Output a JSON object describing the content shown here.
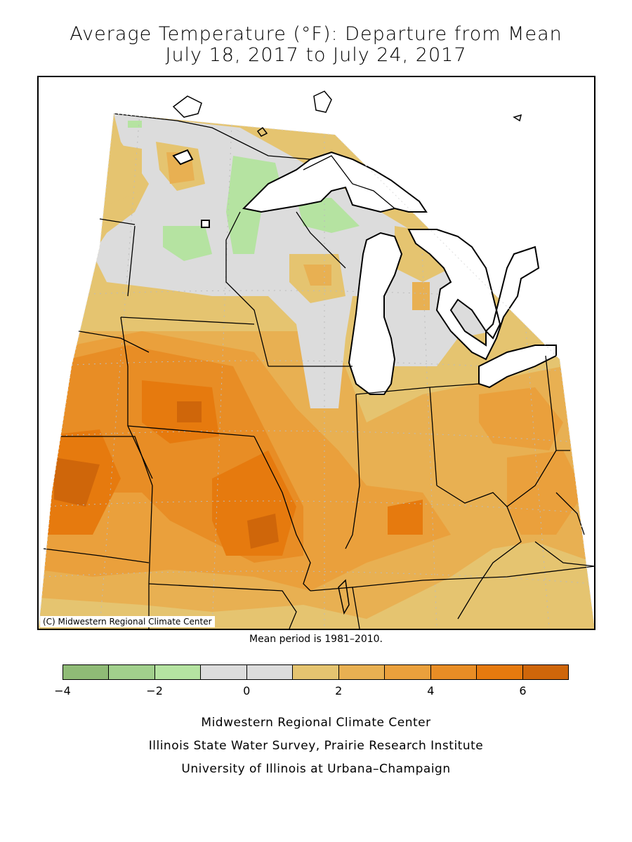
{
  "title": {
    "line1": "Average Temperature (°F): Departure from Mean",
    "line2": "July 18, 2017 to July 24, 2017"
  },
  "map": {
    "copyright": "(C) Midwestern Regional Climate Center",
    "background_color": "#e5c470"
  },
  "mean_period": "Mean period is 1981–2010.",
  "legend": {
    "bins": [
      {
        "from": -4,
        "to": -3,
        "color": "#8fbb76"
      },
      {
        "from": -3,
        "to": -2,
        "color": "#a1d08c"
      },
      {
        "from": -2,
        "to": -1,
        "color": "#b5e3a1"
      },
      {
        "from": -1,
        "to": 0,
        "color": "#dcdcdc"
      },
      {
        "from": 0,
        "to": 1,
        "color": "#dcdcdc"
      },
      {
        "from": 1,
        "to": 2,
        "color": "#e5c470"
      },
      {
        "from": 2,
        "to": 3,
        "color": "#e8b052"
      },
      {
        "from": 3,
        "to": 4,
        "color": "#eaa03c"
      },
      {
        "from": 4,
        "to": 5,
        "color": "#e88d25"
      },
      {
        "from": 5,
        "to": 6,
        "color": "#e67a0e"
      },
      {
        "from": 6,
        "to": 7,
        "color": "#cf660a"
      }
    ],
    "ticks": [
      "−4",
      "−2",
      "0",
      "2",
      "4",
      "6"
    ]
  },
  "credits": [
    "Midwestern Regional Climate Center",
    "Illinois State Water Survey, Prairie Research Institute",
    "University of Illinois at Urbana–Champaign"
  ]
}
